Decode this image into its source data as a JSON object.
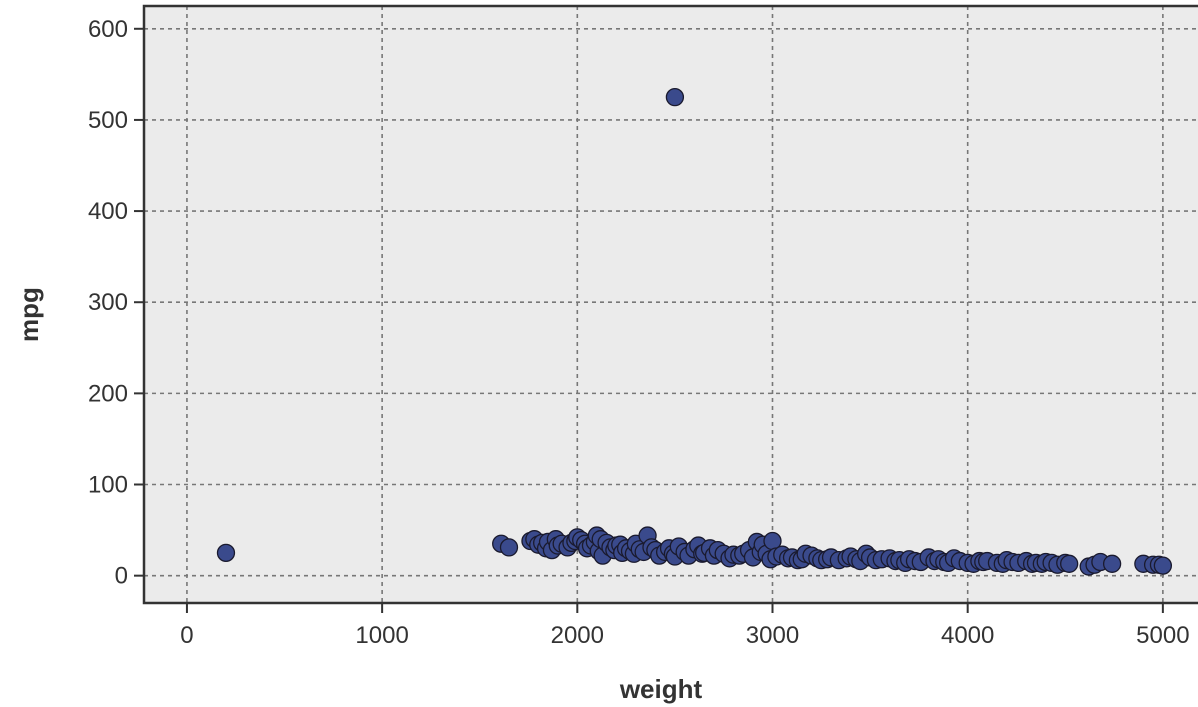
{
  "chart_data": {
    "type": "scatter",
    "title": "",
    "xlabel": "weight",
    "ylabel": "mpg",
    "xlim": [
      -220,
      5180
    ],
    "ylim": [
      -30,
      625
    ],
    "xticks": [
      0,
      1000,
      2000,
      3000,
      4000,
      5000
    ],
    "yticks": [
      0,
      100,
      200,
      300,
      400,
      500,
      600
    ],
    "xtick_labels": [
      "0",
      "1000",
      "2000",
      "3000",
      "4000",
      "5000"
    ],
    "ytick_labels": [
      "0",
      "100",
      "200",
      "300",
      "400",
      "500",
      "600"
    ],
    "grid": true,
    "colors": {
      "panel_background": "#ebebeb",
      "point_fill": "#3a4a8c",
      "point_edge": "#1a1a2e",
      "frame": "#333333",
      "grid": "#777777"
    },
    "series": [
      {
        "x": [
          200,
          2500,
          1610,
          1650,
          1760,
          1780,
          1800,
          1820,
          1840,
          1850,
          1870,
          1890,
          1900,
          1920,
          1950,
          1970,
          1990,
          2000,
          2020,
          2040,
          2050,
          2070,
          2090,
          2100,
          2110,
          2120,
          2130,
          2150,
          2170,
          2190,
          2200,
          2220,
          2230,
          2250,
          2270,
          2290,
          2300,
          2320,
          2340,
          2360,
          2380,
          2400,
          2420,
          2450,
          2470,
          2490,
          2500,
          2520,
          2550,
          2570,
          2600,
          2620,
          2640,
          2650,
          2680,
          2700,
          2720,
          2750,
          2780,
          2800,
          2830,
          2850,
          2880,
          2900,
          2920,
          2940,
          2950,
          2970,
          2990,
          3000,
          3020,
          3050,
          3080,
          3100,
          3130,
          3150,
          3170,
          3200,
          3230,
          3250,
          3280,
          3300,
          3340,
          3380,
          3400,
          3430,
          3450,
          3480,
          3500,
          3530,
          3560,
          3600,
          3630,
          3650,
          3680,
          3700,
          3730,
          3760,
          3800,
          3830,
          3850,
          3880,
          3900,
          3930,
          3960,
          4000,
          4030,
          4060,
          4080,
          4100,
          4150,
          4180,
          4200,
          4230,
          4260,
          4300,
          4330,
          4350,
          4380,
          4400,
          4430,
          4460,
          4500,
          4520,
          4620,
          4650,
          4680,
          4740,
          4900,
          4950,
          4980,
          5000
        ],
        "y": [
          25,
          525,
          35,
          31,
          38,
          40,
          34,
          36,
          30,
          37,
          28,
          40,
          33,
          35,
          31,
          36,
          38,
          42,
          39,
          35,
          30,
          33,
          37,
          44,
          27,
          40,
          22,
          36,
          31,
          28,
          33,
          34,
          25,
          30,
          27,
          24,
          35,
          29,
          26,
          44,
          31,
          28,
          22,
          26,
          30,
          24,
          21,
          32,
          26,
          22,
          29,
          33,
          24,
          25,
          30,
          22,
          28,
          24,
          19,
          23,
          22,
          24,
          28,
          20,
          37,
          26,
          34,
          24,
          18,
          38,
          21,
          23,
          19,
          20,
          17,
          18,
          24,
          22,
          19,
          17,
          18,
          20,
          17,
          19,
          21,
          18,
          16,
          24,
          20,
          17,
          18,
          19,
          16,
          17,
          14,
          18,
          16,
          15,
          20,
          16,
          18,
          15,
          14,
          19,
          16,
          14,
          13,
          16,
          15,
          16,
          14,
          13,
          17,
          15,
          14,
          16,
          13,
          14,
          13,
          15,
          14,
          12,
          14,
          13,
          10,
          12,
          15,
          13,
          13,
          12,
          12,
          11
        ]
      }
    ]
  }
}
